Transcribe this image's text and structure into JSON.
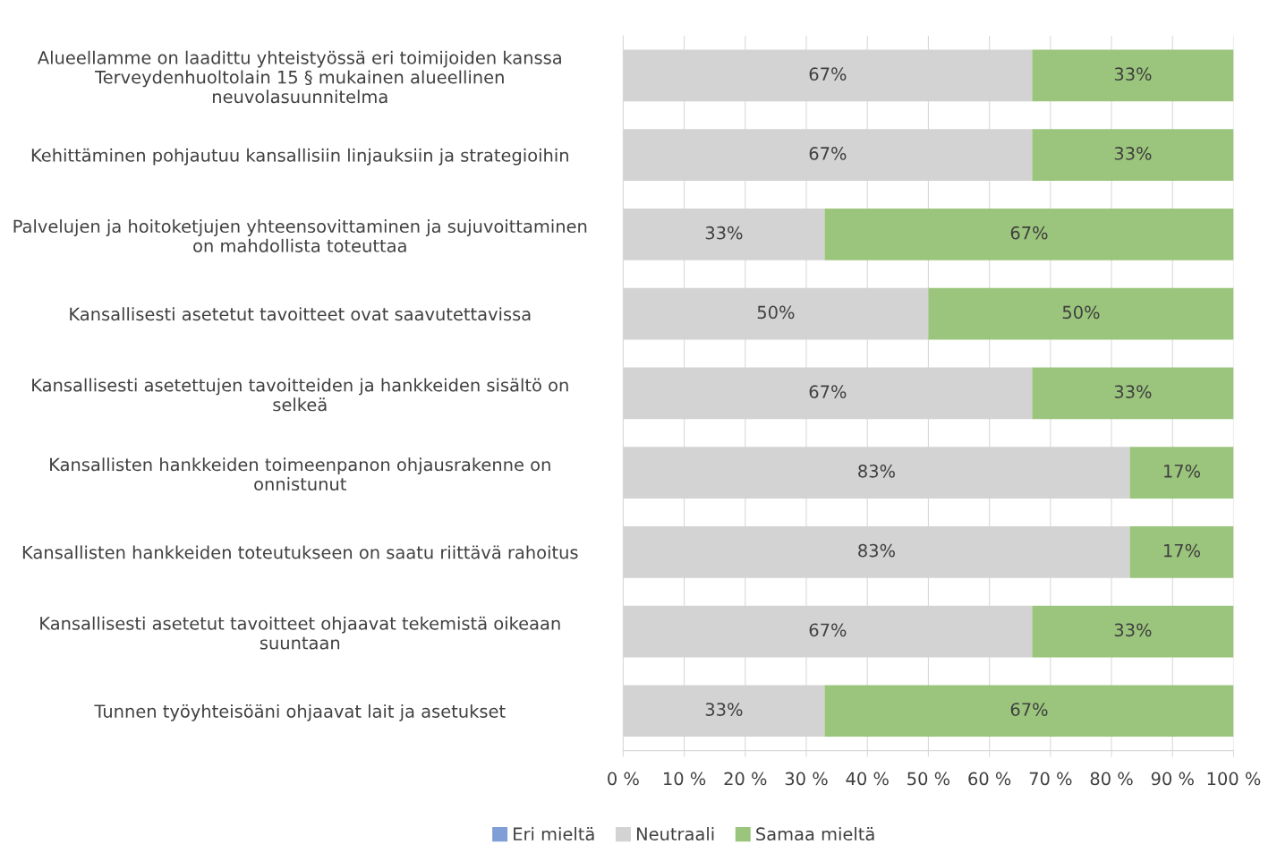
{
  "chart_data": {
    "type": "bar",
    "orientation": "horizontal",
    "stacked": true,
    "categories": [
      "Alueellamme on laadittu yhteistyössä eri toimijoiden kanssa\nTerveydenhuoltolain 15 § mukainen alueellinen\nneuvolasuunnitelma",
      "Kehittäminen pohjautuu kansallisiin linjauksiin ja strategioihin",
      "Palvelujen ja hoitoketjujen yhteensovittaminen ja sujuvoittaminen\non mahdollista toteuttaa",
      "Kansallisesti asetetut tavoitteet ovat saavutettavissa",
      "Kansallisesti asetettujen tavoitteiden ja hankkeiden sisältö on\nselkeä",
      "Kansallisten hankkeiden toimeenpanon ohjausrakenne on\nonnistunut",
      "Kansallisten hankkeiden toteutukseen on saatu riittävä rahoitus",
      "Kansallisesti asetetut tavoitteet ohjaavat tekemistä oikeaan\nsuuntaan",
      "Tunnen työyhteisöäni ohjaavat lait ja asetukset"
    ],
    "series": [
      {
        "name": "Eri mieltä",
        "color": "#7f9fd6",
        "values": [
          0,
          0,
          0,
          0,
          0,
          0,
          0,
          0,
          0
        ],
        "value_labels": [
          null,
          null,
          null,
          null,
          null,
          null,
          null,
          null,
          null
        ]
      },
      {
        "name": "Neutraali",
        "color": "#d3d3d3",
        "values": [
          67,
          67,
          33,
          50,
          67,
          83,
          83,
          67,
          33
        ],
        "value_labels": [
          "67%",
          "67%",
          "33%",
          "50%",
          "67%",
          "83%",
          "83%",
          "67%",
          "33%"
        ]
      },
      {
        "name": "Samaa mieltä",
        "color": "#9bc57c",
        "values": [
          33,
          33,
          67,
          50,
          33,
          17,
          17,
          33,
          67
        ],
        "value_labels": [
          "33%",
          "33%",
          "67%",
          "50%",
          "33%",
          "17%",
          "17%",
          "33%",
          "67%"
        ]
      }
    ],
    "xlim": [
      0,
      100
    ],
    "xticks": [
      {
        "value": 0,
        "label": "0 %"
      },
      {
        "value": 10,
        "label": "10 %"
      },
      {
        "value": 20,
        "label": "20 %"
      },
      {
        "value": 30,
        "label": "30 %"
      },
      {
        "value": 40,
        "label": "40 %"
      },
      {
        "value": 50,
        "label": "50 %"
      },
      {
        "value": 60,
        "label": "60 %"
      },
      {
        "value": 70,
        "label": "70 %"
      },
      {
        "value": 80,
        "label": "80 %"
      },
      {
        "value": 90,
        "label": "90 %"
      },
      {
        "value": 100,
        "label": "100 %"
      }
    ],
    "grid": "x",
    "legend": "bottom"
  }
}
